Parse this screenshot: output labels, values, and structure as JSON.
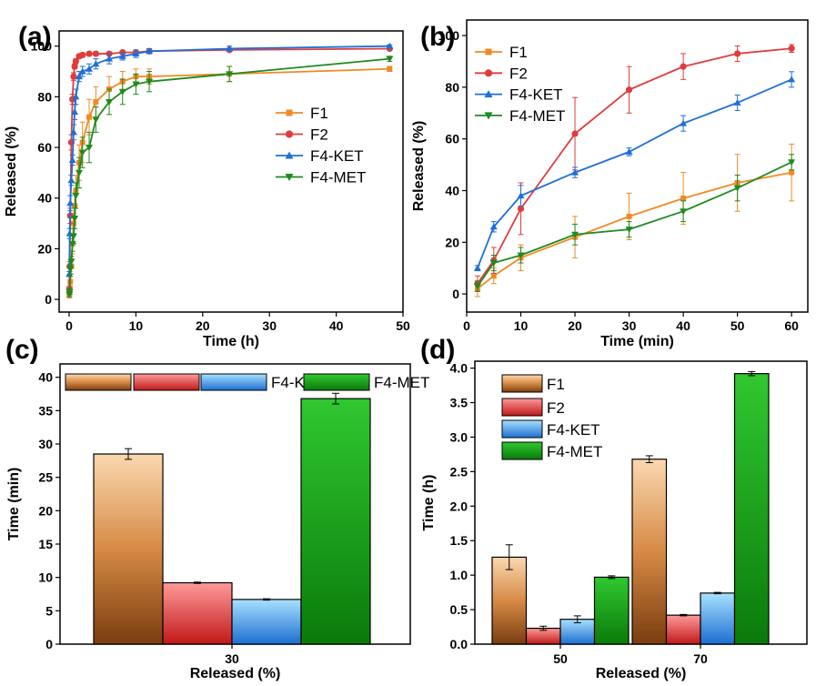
{
  "colors": {
    "F1": "#f08a24",
    "F2": "#e03c3c",
    "F4-KET": "#1f6fd6",
    "F4-MET": "#1f8a1f"
  },
  "chart_data": [
    {
      "panel": "(a)",
      "type": "line",
      "xlabel": "Time (h)",
      "ylabel": "Released (%)",
      "xlim": [
        -1.5,
        50
      ],
      "ylim": [
        -5,
        106
      ],
      "xticks": [
        0,
        10,
        20,
        30,
        40,
        50
      ],
      "yticks": [
        0,
        20,
        40,
        60,
        80,
        100
      ],
      "legend_position": "center-right",
      "series": [
        {
          "name": "F1",
          "color": "#f08a24",
          "marker": "square",
          "x": [
            0.033,
            0.083,
            0.167,
            0.33,
            0.5,
            0.67,
            0.83,
            1,
            1.5,
            2,
            3,
            4,
            6,
            8,
            10,
            12,
            24,
            48
          ],
          "y": [
            2,
            4,
            7,
            13,
            22,
            30,
            37,
            43,
            54,
            62,
            72,
            78,
            83,
            86,
            88,
            88,
            89,
            91
          ],
          "err": [
            1.5,
            1.5,
            2,
            3,
            4,
            4,
            5,
            6,
            7,
            8,
            7,
            6,
            5,
            4,
            3,
            3,
            3,
            1
          ]
        },
        {
          "name": "F2",
          "color": "#e03c3c",
          "marker": "circle",
          "x": [
            0.033,
            0.083,
            0.167,
            0.33,
            0.5,
            0.67,
            0.83,
            1,
            1.5,
            2,
            3,
            4,
            6,
            8,
            10,
            12,
            24,
            48
          ],
          "y": [
            4,
            13,
            33,
            62,
            79,
            88,
            92,
            94,
            96,
            96.5,
            97,
            97,
            97,
            97.5,
            97.5,
            98,
            98.5,
            99
          ],
          "err": [
            1,
            2,
            3,
            3,
            2,
            1.5,
            1,
            1,
            0.8,
            0.8,
            0.6,
            0.6,
            0.5,
            0.5,
            0.5,
            0.5,
            0.5,
            0.5
          ]
        },
        {
          "name": "F4-KET",
          "color": "#1f6fd6",
          "marker": "triangle-up",
          "x": [
            0.033,
            0.083,
            0.167,
            0.33,
            0.5,
            0.67,
            0.83,
            1,
            1.5,
            2,
            3,
            4,
            6,
            8,
            10,
            12,
            24,
            48
          ],
          "y": [
            10,
            26,
            38,
            47,
            55,
            66,
            74,
            80,
            88,
            90,
            91,
            93,
            95,
            96,
            97,
            98,
            99,
            100
          ],
          "err": [
            1,
            2,
            3,
            2,
            2,
            3,
            3,
            3,
            2,
            2,
            2,
            2,
            2,
            1.5,
            1.5,
            1,
            1,
            0.5
          ]
        },
        {
          "name": "F4-MET",
          "color": "#1f8a1f",
          "marker": "triangle-down",
          "x": [
            0.033,
            0.083,
            0.167,
            0.33,
            0.5,
            0.67,
            0.83,
            1,
            1.5,
            2,
            3,
            4,
            6,
            8,
            10,
            12,
            24,
            48
          ],
          "y": [
            2,
            3,
            12,
            15,
            22,
            25,
            32,
            41,
            50,
            58,
            60,
            71,
            78,
            82,
            85,
            86,
            89,
            95
          ],
          "err": [
            1,
            1,
            2,
            2,
            3,
            3,
            4,
            5,
            6,
            6,
            6,
            5,
            5,
            5,
            4,
            4,
            3,
            1
          ]
        }
      ]
    },
    {
      "panel": "(b)",
      "type": "line",
      "xlabel": "Time (min)",
      "ylabel": "Released (%)",
      "xlim": [
        0,
        63
      ],
      "ylim": [
        -7,
        106
      ],
      "xticks": [
        0,
        10,
        20,
        30,
        40,
        50,
        60
      ],
      "yticks": [
        0,
        20,
        40,
        60,
        80,
        100
      ],
      "legend_position": "top-left",
      "series": [
        {
          "name": "F1",
          "color": "#f08a24",
          "marker": "square",
          "x": [
            2,
            5,
            10,
            20,
            30,
            40,
            50,
            60
          ],
          "y": [
            2,
            7,
            14,
            22,
            30,
            37,
            43,
            47
          ],
          "err": [
            3,
            3,
            5,
            8,
            9,
            10,
            11,
            11
          ]
        },
        {
          "name": "F2",
          "color": "#e03c3c",
          "marker": "circle",
          "x": [
            2,
            5,
            10,
            20,
            30,
            40,
            50,
            60
          ],
          "y": [
            4,
            13,
            33,
            62,
            79,
            88,
            93,
            95
          ],
          "err": [
            3,
            5,
            10,
            14,
            9,
            5,
            3,
            1.5
          ]
        },
        {
          "name": "F4-KET",
          "color": "#1f6fd6",
          "marker": "triangle-up",
          "x": [
            2,
            5,
            10,
            20,
            30,
            40,
            50,
            60
          ],
          "y": [
            10,
            26,
            38,
            47,
            55,
            66,
            74,
            83
          ],
          "err": [
            1,
            2,
            4,
            2,
            1.5,
            3,
            3,
            3
          ]
        },
        {
          "name": "F4-MET",
          "color": "#1f8a1f",
          "marker": "triangle-down",
          "x": [
            2,
            5,
            10,
            20,
            30,
            40,
            50,
            60
          ],
          "y": [
            3,
            12,
            15,
            23,
            25,
            32,
            41,
            51
          ],
          "err": [
            2,
            3,
            3,
            4,
            3,
            4,
            5,
            3
          ]
        }
      ]
    },
    {
      "panel": "(c)",
      "type": "bar",
      "xlabel": "Released (%)",
      "ylabel": "Time (min)",
      "ylim": [
        0,
        42
      ],
      "yticks": [
        0,
        5,
        10,
        15,
        20,
        25,
        30,
        35,
        40
      ],
      "categories": [
        "30"
      ],
      "legend_position": "top",
      "series": [
        {
          "name": "F1",
          "color": "#e49a55",
          "values": [
            28.5
          ],
          "err": [
            0.8
          ]
        },
        {
          "name": "F2",
          "color": "#f06060",
          "values": [
            9.2
          ],
          "err": [
            0.1
          ]
        },
        {
          "name": "F4-KET",
          "color": "#4aaaf0",
          "values": [
            6.7
          ],
          "err": [
            0.1
          ]
        },
        {
          "name": "F4-MET",
          "color": "#20b020",
          "values": [
            36.8
          ],
          "err": [
            0.8
          ]
        }
      ]
    },
    {
      "panel": "(d)",
      "type": "bar",
      "xlabel": "Released (%)",
      "ylabel": "Time (h)",
      "ylim": [
        0,
        4.1
      ],
      "yticks": [
        0.0,
        0.5,
        1.0,
        1.5,
        2.0,
        2.5,
        3.0,
        3.5,
        4.0
      ],
      "categories": [
        "50",
        "70"
      ],
      "legend_position": "top-left",
      "series": [
        {
          "name": "F1",
          "color": "#e49a55",
          "values": [
            1.26,
            2.68
          ],
          "err": [
            0.18,
            0.05
          ]
        },
        {
          "name": "F2",
          "color": "#f06060",
          "values": [
            0.23,
            0.42
          ],
          "err": [
            0.03,
            0.01
          ]
        },
        {
          "name": "F4-KET",
          "color": "#4aaaf0",
          "values": [
            0.36,
            0.74
          ],
          "err": [
            0.05,
            0.01
          ]
        },
        {
          "name": "F4-MET",
          "color": "#20b020",
          "values": [
            0.97,
            3.92
          ],
          "err": [
            0.02,
            0.03
          ]
        }
      ]
    }
  ]
}
